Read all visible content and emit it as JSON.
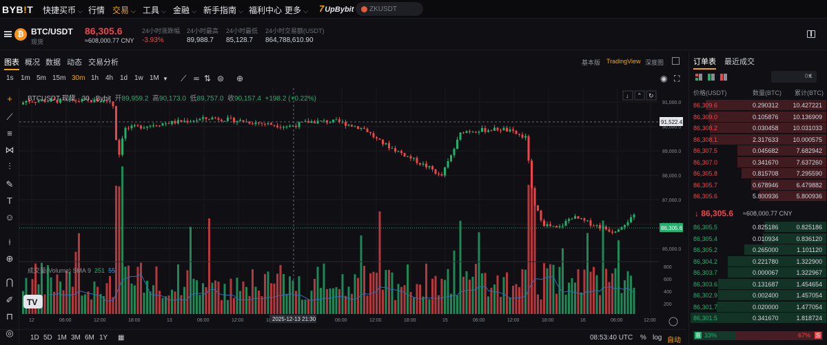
{
  "nav": {
    "logo": "BYB!T",
    "items": [
      "快捷买币",
      "行情",
      "交易",
      "工具",
      "金融",
      "新手指南",
      "福利中心",
      "更多"
    ],
    "promo": "UpBybit",
    "search_placeholder": "ZKUSDT"
  },
  "ticker": {
    "pair": "BTC/USDT",
    "type": "现货",
    "price": "86,305.6",
    "cny": "≈608,000.77 CNY",
    "stats": [
      {
        "label": "24小时涨跌幅",
        "value": "-3.93%"
      },
      {
        "label": "24小时最高",
        "value": "89,988.7"
      },
      {
        "label": "24小时最低",
        "value": "85,128.7"
      },
      {
        "label": "24小时交易额(USDT)",
        "value": "864,788,610.90"
      }
    ]
  },
  "chart_tabs": [
    "图表",
    "概况",
    "数据",
    "动态",
    "交易分析"
  ],
  "view_tabs": [
    "基本版",
    "TradingView",
    "深度图"
  ],
  "timeframes": [
    "1s",
    "1m",
    "5m",
    "15m",
    "30m",
    "1h",
    "4h",
    "1d",
    "1w",
    "1M"
  ],
  "legend": {
    "symbol": "BTCUSDT 现货 · 30 · Bybit",
    "o_label": "开",
    "o": "89,959.2",
    "h_label": "高",
    "h": "90,173.0",
    "l_label": "低",
    "l": "89,757.0",
    "c_label": "收",
    "c": "90,157.4",
    "chg": "+198.2 (+0.22%)"
  },
  "volume_legend": {
    "name": "成交量(Volume) SMA 9",
    "a": "251",
    "b": "55"
  },
  "crosshair": {
    "price": "91,522.4",
    "time": "2025-12-13  21:30"
  },
  "last_price_tag": "86,305.6",
  "range_buttons": [
    "1D",
    "5D",
    "1M",
    "3M",
    "6M",
    "1Y"
  ],
  "bottom": {
    "clock": "08:53:40 UTC",
    "pct": "%",
    "log": "log",
    "auto": "自动"
  },
  "chart_data": {
    "type": "candlestick",
    "ylim": [
      84800,
      91400
    ],
    "yticks": [
      "91,000.0",
      "90,000.0",
      "89,000.0",
      "88,000.0",
      "87,000.0",
      "86,000.0",
      "85,000.0"
    ],
    "volume_ticks": [
      "800",
      "600",
      "400",
      "200"
    ],
    "x_ticks": [
      "12",
      "06:00",
      "12:00",
      "18:00",
      "13",
      "06:00",
      "12:00",
      "18:00",
      "14",
      "06:00",
      "12:00",
      "18:00",
      "15",
      "06:00",
      "12:00",
      "18:00",
      "16",
      "06:00",
      "12:00"
    ]
  },
  "orderbook": {
    "tabs": [
      "订单表",
      "最近成交"
    ],
    "step": "0.1",
    "headers": [
      "价格(USDT)",
      "数量(BTC)",
      "累计(BTC)"
    ],
    "asks": [
      [
        "86,309.6",
        "0.290312",
        "10.427221",
        0.88
      ],
      [
        "86,309.0",
        "0.105876",
        "10.136909",
        0.86
      ],
      [
        "86,308.2",
        "0.030458",
        "10.031033",
        0.85
      ],
      [
        "86,308.1",
        "2.317633",
        "10.000575",
        0.85
      ],
      [
        "86,307.5",
        "0.045682",
        "7.682942",
        0.65
      ],
      [
        "86,307.0",
        "0.341670",
        "7.637260",
        0.65
      ],
      [
        "86,305.8",
        "0.815708",
        "7.295590",
        0.62
      ],
      [
        "86,305.7",
        "0.678946",
        "6.479882",
        0.55
      ],
      [
        "86,305.6",
        "5.800936",
        "5.800936",
        0.49
      ]
    ],
    "mid_price": "↓ 86,305.6",
    "mid_cny": "≈608,000.77 CNY",
    "bids": [
      [
        "86,305.5",
        "0.825186",
        "0.825186",
        0.45
      ],
      [
        "86,305.4",
        "0.010934",
        "0.836120",
        0.46
      ],
      [
        "86,305.2",
        "0.265000",
        "1.101120",
        0.6
      ],
      [
        "86,304.2",
        "0.221780",
        "1.322900",
        0.72
      ],
      [
        "86,303.7",
        "0.000067",
        "1.322967",
        0.72
      ],
      [
        "86,303.6",
        "0.131687",
        "1.454654",
        0.79
      ],
      [
        "86,302.9",
        "0.002400",
        "1.457054",
        0.79
      ],
      [
        "86,301.7",
        "0.020000",
        "1.477054",
        0.8
      ],
      [
        "86,301.5",
        "0.341670",
        "1.818724",
        0.99
      ]
    ],
    "buy_pct": "33%",
    "sell_pct": "67%",
    "buy_label": "B",
    "sell_label": "S"
  },
  "colors": {
    "up": "#20b26c",
    "down": "#ef454a",
    "accent": "#f7a600"
  }
}
